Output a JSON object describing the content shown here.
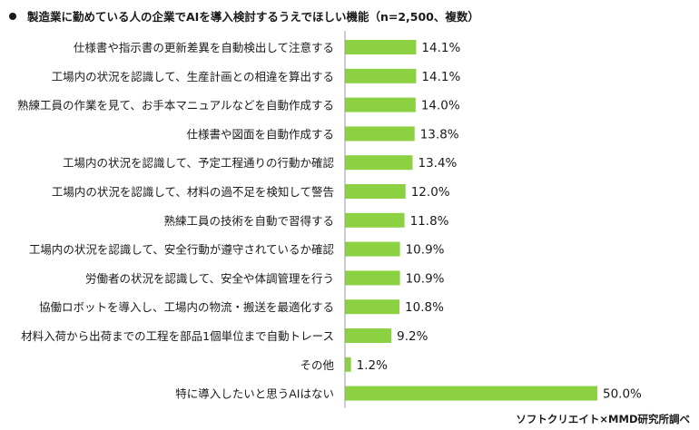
{
  "title": "製造業に勤めている人の企業でAIを導入検討するうえでほしい機能（n=2,500、複数）",
  "source": "ソフトクリエイト×MMD研究所調べ",
  "colors": {
    "bar": "#8cd141",
    "text": "#1a1a1a"
  },
  "chart_data": {
    "type": "bar",
    "orientation": "horizontal",
    "unit": "%",
    "xlim": [
      0,
      50
    ],
    "grid": false,
    "legend": "none",
    "categories": [
      "仕様書や指示書の更新差異を自動検出して注意する",
      "工場内の状況を認識して、生産計画との相違を算出する",
      "熟練工員の作業を見て、お手本マニュアルなどを自動作成する",
      "仕様書や図面を自動作成する",
      "工場内の状況を認識して、予定工程通りの行動か確認",
      "工場内の状況を認識して、材料の過不足を検知して警告",
      "熟練工員の技術を自動で習得する",
      "工場内の状況を認識して、安全行動が遵守されているか確認",
      "労働者の状況を認識して、安全や体調管理を行う",
      "協働ロボットを導入し、工場内の物流・搬送を最適化する",
      "材料入荷から出荷までの工程を部品1個単位まで自動トレース",
      "その他",
      "特に導入したいと思うAIはない"
    ],
    "values": [
      14.1,
      14.1,
      14.0,
      13.8,
      13.4,
      12.0,
      11.8,
      10.9,
      10.9,
      10.8,
      9.2,
      1.2,
      50.0
    ],
    "value_labels": [
      "14.1%",
      "14.1%",
      "14.0%",
      "13.8%",
      "13.4%",
      "12.0%",
      "11.8%",
      "10.9%",
      "10.9%",
      "10.8%",
      "9.2%",
      "1.2%",
      "50.0%"
    ]
  }
}
